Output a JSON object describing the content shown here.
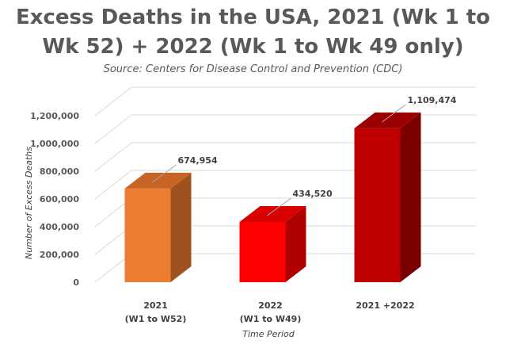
{
  "chart_data": {
    "type": "bar",
    "title_line1": "Excess Deaths in the USA, 2021 (Wk 1 to",
    "title_line2": "Wk 52) + 2022 (Wk 1 to Wk 49 only)",
    "subtitle": "Source: Centers for Disease Control and Prevention (CDC)",
    "xlabel": "Time Period",
    "ylabel": "Number of Excess Deaths",
    "ylim": [
      0,
      1200000
    ],
    "yticks": [
      0,
      200000,
      400000,
      600000,
      800000,
      1000000,
      1200000
    ],
    "ytick_labels": [
      "0",
      "200,000",
      "400,000",
      "600,000",
      "800,000",
      "1,000,000",
      "1,200,000"
    ],
    "categories": [
      {
        "line1": "2021",
        "line2": "(W1 to W52)"
      },
      {
        "line1": "2022",
        "line2": "(W1 to W49)"
      },
      {
        "line1": "2021 +2022",
        "line2": ""
      }
    ],
    "values": [
      674954,
      434520,
      1109474
    ],
    "value_labels": [
      "674,954",
      "434,520",
      "1,109,474"
    ],
    "colors": [
      {
        "front": "#ED7D31",
        "side": "#A0521E",
        "top": "#C56425"
      },
      {
        "front": "#FF0000",
        "side": "#B00000",
        "top": "#D80000"
      },
      {
        "front": "#C00000",
        "side": "#7A0000",
        "top": "#9A0000"
      }
    ]
  }
}
